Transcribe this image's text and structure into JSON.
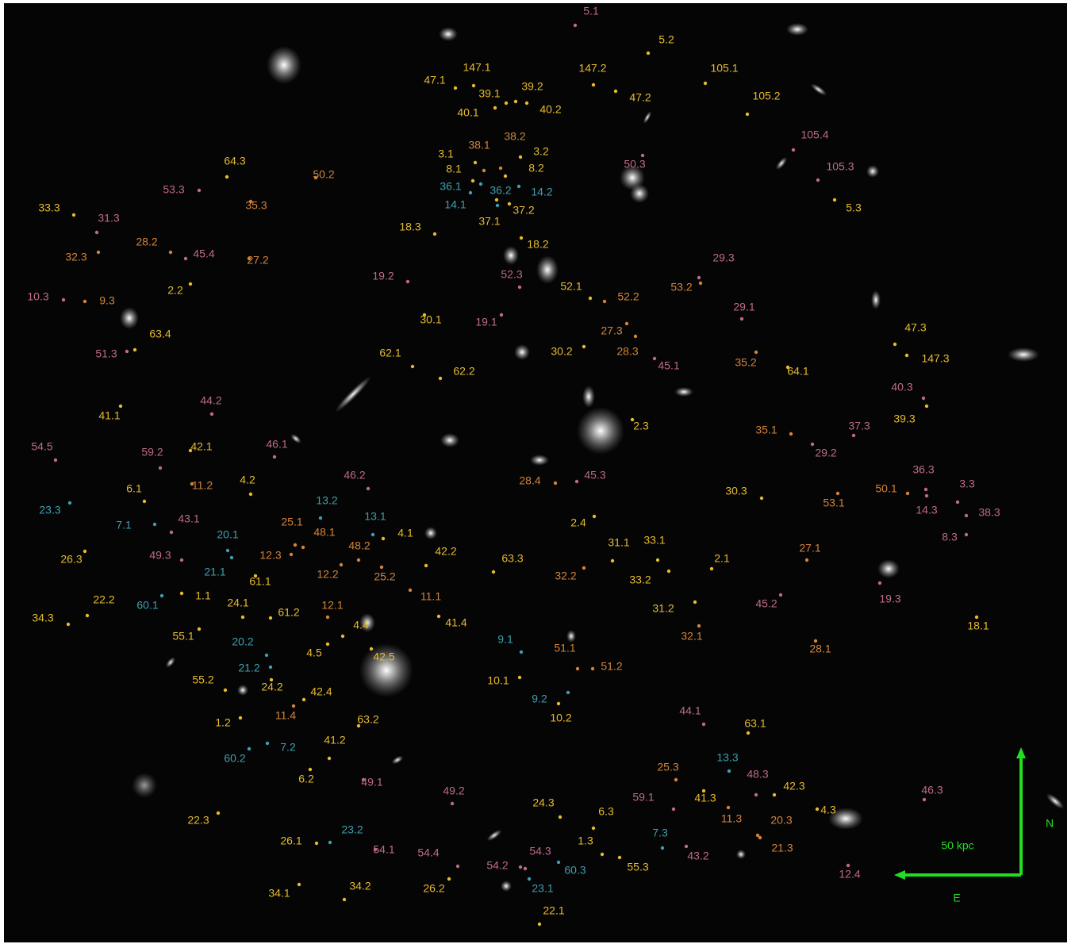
{
  "palette": {
    "yellow": "#e6bb2e",
    "orange": "#d3843a",
    "pink": "#bf6a8c",
    "cyan": "#3f9fb0"
  },
  "labels": [
    {
      "text": "5.1",
      "color": "pink"
    },
    {
      "text": "5.2",
      "color": "yellow"
    },
    {
      "text": "147.1",
      "color": "yellow"
    },
    {
      "text": "147.2",
      "color": "yellow"
    },
    {
      "text": "105.1",
      "color": "yellow"
    },
    {
      "text": "47.1",
      "color": "yellow"
    },
    {
      "text": "39.1",
      "color": "yellow"
    },
    {
      "text": "39.2",
      "color": "yellow"
    },
    {
      "text": "47.2",
      "color": "yellow"
    },
    {
      "text": "105.2",
      "color": "yellow"
    },
    {
      "text": "40.1",
      "color": "yellow"
    },
    {
      "text": "40.2",
      "color": "yellow"
    },
    {
      "text": "105.4",
      "color": "pink"
    },
    {
      "text": "38.1",
      "color": "orange"
    },
    {
      "text": "38.2",
      "color": "orange"
    },
    {
      "text": "3.1",
      "color": "yellow"
    },
    {
      "text": "3.2",
      "color": "yellow"
    },
    {
      "text": "50.3",
      "color": "pink"
    },
    {
      "text": "105.3",
      "color": "pink"
    },
    {
      "text": "64.3",
      "color": "yellow"
    },
    {
      "text": "50.2",
      "color": "orange"
    },
    {
      "text": "8.1",
      "color": "yellow"
    },
    {
      "text": "8.2",
      "color": "yellow"
    },
    {
      "text": "36.1",
      "color": "cyan"
    },
    {
      "text": "36.2",
      "color": "cyan"
    },
    {
      "text": "14.2",
      "color": "cyan"
    },
    {
      "text": "53.3",
      "color": "pink"
    },
    {
      "text": "35.3",
      "color": "orange"
    },
    {
      "text": "14.1",
      "color": "cyan"
    },
    {
      "text": "37.2",
      "color": "yellow"
    },
    {
      "text": "5.3",
      "color": "yellow"
    },
    {
      "text": "33.3",
      "color": "yellow"
    },
    {
      "text": "31.3",
      "color": "pink"
    },
    {
      "text": "37.1",
      "color": "yellow"
    },
    {
      "text": "18.3",
      "color": "yellow"
    },
    {
      "text": "28.2",
      "color": "orange"
    },
    {
      "text": "45.4",
      "color": "pink"
    },
    {
      "text": "18.2",
      "color": "yellow"
    },
    {
      "text": "32.3",
      "color": "orange"
    },
    {
      "text": "27.2",
      "color": "orange"
    },
    {
      "text": "29.3",
      "color": "pink"
    },
    {
      "text": "19.2",
      "color": "pink"
    },
    {
      "text": "52.3",
      "color": "pink"
    },
    {
      "text": "2.2",
      "color": "yellow"
    },
    {
      "text": "52.1",
      "color": "yellow"
    },
    {
      "text": "52.2",
      "color": "orange"
    },
    {
      "text": "53.2",
      "color": "orange"
    },
    {
      "text": "10.3",
      "color": "pink"
    },
    {
      "text": "9.3",
      "color": "orange"
    },
    {
      "text": "29.1",
      "color": "pink"
    },
    {
      "text": "30.1",
      "color": "yellow"
    },
    {
      "text": "19.1",
      "color": "pink"
    },
    {
      "text": "27.3",
      "color": "orange"
    },
    {
      "text": "47.3",
      "color": "yellow"
    },
    {
      "text": "63.4",
      "color": "yellow"
    },
    {
      "text": "30.2",
      "color": "yellow"
    },
    {
      "text": "28.3",
      "color": "orange"
    },
    {
      "text": "62.1",
      "color": "yellow"
    },
    {
      "text": "51.3",
      "color": "pink"
    },
    {
      "text": "147.3",
      "color": "yellow"
    },
    {
      "text": "35.2",
      "color": "orange"
    },
    {
      "text": "45.1",
      "color": "pink"
    },
    {
      "text": "62.2",
      "color": "yellow"
    },
    {
      "text": "64.1",
      "color": "yellow"
    },
    {
      "text": "40.3",
      "color": "pink"
    },
    {
      "text": "44.2",
      "color": "pink"
    },
    {
      "text": "41.1",
      "color": "yellow"
    },
    {
      "text": "39.3",
      "color": "yellow"
    },
    {
      "text": "2.3",
      "color": "yellow"
    },
    {
      "text": "37.3",
      "color": "pink"
    },
    {
      "text": "35.1",
      "color": "orange"
    },
    {
      "text": "54.5",
      "color": "pink"
    },
    {
      "text": "46.1",
      "color": "pink"
    },
    {
      "text": "42.1",
      "color": "yellow"
    },
    {
      "text": "59.2",
      "color": "pink"
    },
    {
      "text": "29.2",
      "color": "pink"
    },
    {
      "text": "36.3",
      "color": "pink"
    },
    {
      "text": "46.2",
      "color": "pink"
    },
    {
      "text": "45.3",
      "color": "pink"
    },
    {
      "text": "28.4",
      "color": "orange"
    },
    {
      "text": "4.2",
      "color": "yellow"
    },
    {
      "text": "11.2",
      "color": "orange"
    },
    {
      "text": "3.3",
      "color": "pink"
    },
    {
      "text": "6.1",
      "color": "yellow"
    },
    {
      "text": "50.1",
      "color": "orange"
    },
    {
      "text": "30.3",
      "color": "yellow"
    },
    {
      "text": "23.3",
      "color": "cyan"
    },
    {
      "text": "14.3",
      "color": "pink"
    },
    {
      "text": "53.1",
      "color": "orange"
    },
    {
      "text": "38.3",
      "color": "pink"
    },
    {
      "text": "13.2",
      "color": "cyan"
    },
    {
      "text": "7.1",
      "color": "cyan"
    },
    {
      "text": "43.1",
      "color": "pink"
    },
    {
      "text": "25.1",
      "color": "orange"
    },
    {
      "text": "13.1",
      "color": "cyan"
    },
    {
      "text": "2.4",
      "color": "yellow"
    },
    {
      "text": "48.1",
      "color": "orange"
    },
    {
      "text": "4.1",
      "color": "yellow"
    },
    {
      "text": "20.1",
      "color": "cyan"
    },
    {
      "text": "8.3",
      "color": "pink"
    },
    {
      "text": "31.1",
      "color": "yellow"
    },
    {
      "text": "33.1",
      "color": "yellow"
    },
    {
      "text": "27.1",
      "color": "orange"
    },
    {
      "text": "48.2",
      "color": "orange"
    },
    {
      "text": "42.2",
      "color": "yellow"
    },
    {
      "text": "49.3",
      "color": "pink"
    },
    {
      "text": "12.3",
      "color": "orange"
    },
    {
      "text": "26.3",
      "color": "yellow"
    },
    {
      "text": "63.3",
      "color": "yellow"
    },
    {
      "text": "2.1",
      "color": "yellow"
    },
    {
      "text": "21.1",
      "color": "cyan"
    },
    {
      "text": "12.2",
      "color": "orange"
    },
    {
      "text": "25.2",
      "color": "orange"
    },
    {
      "text": "32.2",
      "color": "orange"
    },
    {
      "text": "33.2",
      "color": "yellow"
    },
    {
      "text": "61.1",
      "color": "yellow"
    },
    {
      "text": "11.1",
      "color": "orange"
    },
    {
      "text": "1.1",
      "color": "yellow"
    },
    {
      "text": "22.2",
      "color": "yellow"
    },
    {
      "text": "45.2",
      "color": "pink"
    },
    {
      "text": "19.3",
      "color": "pink"
    },
    {
      "text": "60.1",
      "color": "cyan"
    },
    {
      "text": "24.1",
      "color": "yellow"
    },
    {
      "text": "12.1",
      "color": "orange"
    },
    {
      "text": "61.2",
      "color": "yellow"
    },
    {
      "text": "31.2",
      "color": "yellow"
    },
    {
      "text": "34.3",
      "color": "yellow"
    },
    {
      "text": "4.4",
      "color": "yellow"
    },
    {
      "text": "41.4",
      "color": "yellow"
    },
    {
      "text": "18.1",
      "color": "yellow"
    },
    {
      "text": "55.1",
      "color": "yellow"
    },
    {
      "text": "32.1",
      "color": "orange"
    },
    {
      "text": "9.1",
      "color": "cyan"
    },
    {
      "text": "20.2",
      "color": "cyan"
    },
    {
      "text": "51.1",
      "color": "orange"
    },
    {
      "text": "28.1",
      "color": "orange"
    },
    {
      "text": "4.5",
      "color": "yellow"
    },
    {
      "text": "42.5",
      "color": "yellow"
    },
    {
      "text": "21.2",
      "color": "cyan"
    },
    {
      "text": "51.2",
      "color": "orange"
    },
    {
      "text": "55.2",
      "color": "yellow"
    },
    {
      "text": "10.1",
      "color": "yellow"
    },
    {
      "text": "24.2",
      "color": "yellow"
    },
    {
      "text": "42.4",
      "color": "yellow"
    },
    {
      "text": "9.2",
      "color": "cyan"
    },
    {
      "text": "44.1",
      "color": "pink"
    },
    {
      "text": "11.4",
      "color": "orange"
    },
    {
      "text": "10.2",
      "color": "yellow"
    },
    {
      "text": "63.2",
      "color": "yellow"
    },
    {
      "text": "1.2",
      "color": "yellow"
    },
    {
      "text": "63.1",
      "color": "yellow"
    },
    {
      "text": "41.2",
      "color": "yellow"
    },
    {
      "text": "7.2",
      "color": "cyan"
    },
    {
      "text": "13.3",
      "color": "cyan"
    },
    {
      "text": "60.2",
      "color": "cyan"
    },
    {
      "text": "25.3",
      "color": "orange"
    },
    {
      "text": "48.3",
      "color": "pink"
    },
    {
      "text": "6.2",
      "color": "yellow"
    },
    {
      "text": "49.1",
      "color": "pink"
    },
    {
      "text": "42.3",
      "color": "yellow"
    },
    {
      "text": "46.3",
      "color": "pink"
    },
    {
      "text": "49.2",
      "color": "pink"
    },
    {
      "text": "59.1",
      "color": "pink"
    },
    {
      "text": "41.3",
      "color": "yellow"
    },
    {
      "text": "24.3",
      "color": "yellow"
    },
    {
      "text": "6.3",
      "color": "yellow"
    },
    {
      "text": "4.3",
      "color": "yellow"
    },
    {
      "text": "22.3",
      "color": "yellow"
    },
    {
      "text": "11.3",
      "color": "orange"
    },
    {
      "text": "20.3",
      "color": "orange"
    },
    {
      "text": "23.2",
      "color": "cyan"
    },
    {
      "text": "7.3",
      "color": "cyan"
    },
    {
      "text": "26.1",
      "color": "yellow"
    },
    {
      "text": "1.3",
      "color": "yellow"
    },
    {
      "text": "21.3",
      "color": "orange"
    },
    {
      "text": "54.1",
      "color": "pink"
    },
    {
      "text": "54.4",
      "color": "pink"
    },
    {
      "text": "54.3",
      "color": "pink"
    },
    {
      "text": "43.2",
      "color": "pink"
    },
    {
      "text": "55.3",
      "color": "yellow"
    },
    {
      "text": "54.2",
      "color": "pink"
    },
    {
      "text": "60.3",
      "color": "cyan"
    },
    {
      "text": "12.4",
      "color": "pink"
    },
    {
      "text": "23.1",
      "color": "cyan"
    },
    {
      "text": "26.2",
      "color": "yellow"
    },
    {
      "text": "34.2",
      "color": "yellow"
    },
    {
      "text": "34.1",
      "color": "yellow"
    },
    {
      "text": "22.1",
      "color": "yellow"
    }
  ],
  "scale_bar": {
    "label": "50 kpc",
    "color": "#22dd22"
  },
  "compass": {
    "north": "N",
    "east": "E"
  }
}
